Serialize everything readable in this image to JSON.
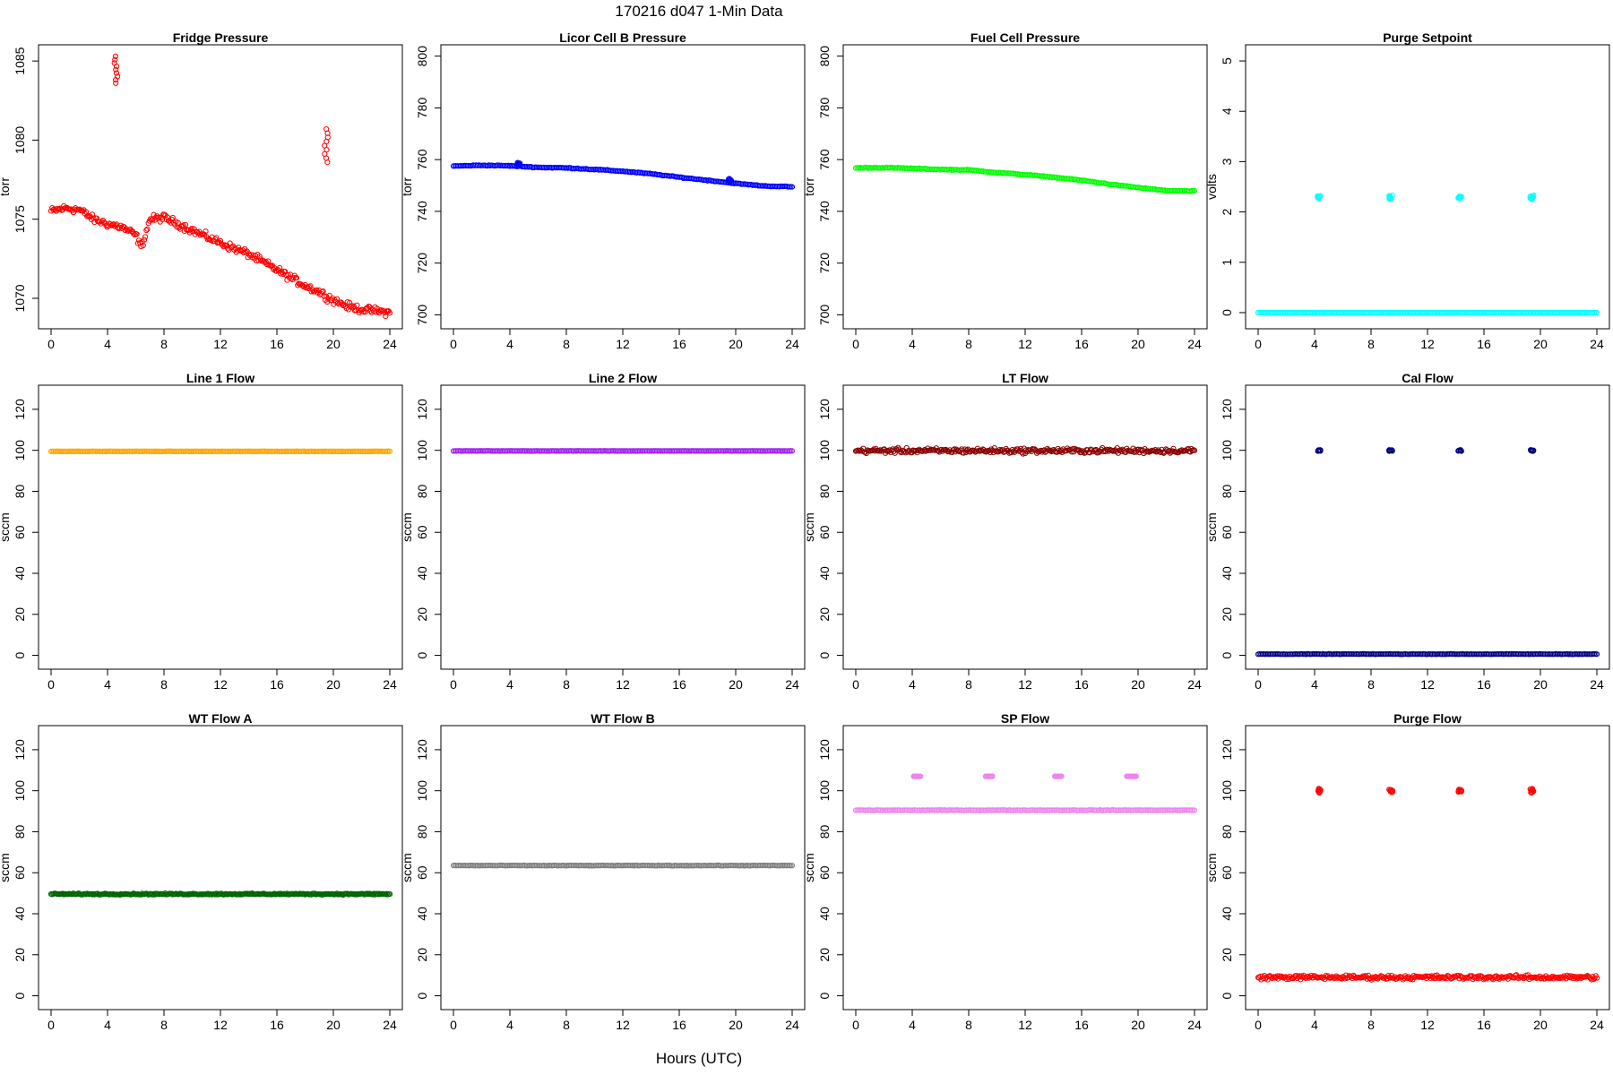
{
  "figure": {
    "title": "170216   d047   1-Min Data",
    "xlabel": "Hours (UTC)"
  },
  "chart_data": [
    {
      "type": "scatter",
      "title": "Fridge Pressure",
      "ylabel": "torr",
      "color": "#ff0000",
      "xlim": [
        0,
        24
      ],
      "ylim": [
        1068.3,
        1085.8
      ],
      "xticks": [
        0,
        4,
        8,
        12,
        16,
        20,
        24
      ],
      "yticks": [
        1070,
        1075,
        1080,
        1085
      ],
      "series": [
        {
          "name": "base",
          "kind": "band",
          "jitter": 0.35,
          "points": [
            [
              0,
              1075.5
            ],
            [
              1,
              1075.7
            ],
            [
              2,
              1075.6
            ],
            [
              3,
              1075.0
            ],
            [
              4,
              1074.7
            ],
            [
              5,
              1074.5
            ],
            [
              6,
              1074.0
            ],
            [
              6.4,
              1073.2
            ],
            [
              7,
              1075.0
            ],
            [
              8,
              1075.1
            ],
            [
              9,
              1074.7
            ],
            [
              10,
              1074.3
            ],
            [
              12,
              1073.5
            ],
            [
              14,
              1072.8
            ],
            [
              16,
              1071.8
            ],
            [
              18,
              1070.8
            ],
            [
              19,
              1070.4
            ],
            [
              20,
              1069.9
            ],
            [
              21,
              1069.5
            ],
            [
              22,
              1069.3
            ],
            [
              24,
              1069.1
            ]
          ]
        },
        {
          "name": "spike-1",
          "kind": "cluster",
          "x": 4.6,
          "y_min": 1083.6,
          "y_max": 1085.3
        },
        {
          "name": "spike-2",
          "kind": "cluster",
          "x": 19.5,
          "y_min": 1078.6,
          "y_max": 1080.7
        }
      ]
    },
    {
      "type": "scatter",
      "title": "Licor Cell B Pressure",
      "ylabel": "torr",
      "color": "#0000ff",
      "xlim": [
        0,
        24
      ],
      "ylim": [
        696,
        803
      ],
      "xticks": [
        0,
        4,
        8,
        12,
        16,
        20,
        24
      ],
      "yticks": [
        700,
        720,
        740,
        760,
        780,
        800
      ],
      "series": [
        {
          "name": "base",
          "kind": "line",
          "jitter": 0.25,
          "points": [
            [
              0,
              757.5
            ],
            [
              2,
              757.8
            ],
            [
              4,
              757.6
            ],
            [
              6,
              757.0
            ],
            [
              8,
              756.8
            ],
            [
              10,
              756.2
            ],
            [
              12,
              755.5
            ],
            [
              14,
              754.5
            ],
            [
              16,
              753.2
            ],
            [
              18,
              752.0
            ],
            [
              20,
              750.8
            ],
            [
              22,
              749.8
            ],
            [
              24,
              749.5
            ]
          ]
        },
        {
          "name": "bump-1",
          "kind": "cluster",
          "x": 4.6,
          "y_min": 757.8,
          "y_max": 758.8
        },
        {
          "name": "bump-2",
          "kind": "cluster",
          "x": 19.6,
          "y_min": 751.5,
          "y_max": 752.6
        }
      ]
    },
    {
      "type": "scatter",
      "title": "Fuel Cell Pressure",
      "ylabel": "torr",
      "color": "#00ff00",
      "xlim": [
        0,
        24
      ],
      "ylim": [
        696,
        803
      ],
      "xticks": [
        0,
        4,
        8,
        12,
        16,
        20,
        24
      ],
      "yticks": [
        700,
        720,
        740,
        760,
        780,
        800
      ],
      "series": [
        {
          "name": "base",
          "kind": "line",
          "jitter": 0.25,
          "points": [
            [
              0,
              756.8
            ],
            [
              2,
              756.9
            ],
            [
              4,
              756.6
            ],
            [
              6,
              756.2
            ],
            [
              8,
              756.0
            ],
            [
              10,
              755.0
            ],
            [
              12,
              754.2
            ],
            [
              14,
              753.2
            ],
            [
              16,
              752.0
            ],
            [
              18,
              750.5
            ],
            [
              20,
              749.2
            ],
            [
              22,
              748.0
            ],
            [
              24,
              747.8
            ]
          ]
        }
      ]
    },
    {
      "type": "scatter",
      "title": "Purge Setpoint",
      "ylabel": "volts",
      "color": "#00ffff",
      "xlim": [
        0,
        24
      ],
      "ylim": [
        -0.25,
        5.25
      ],
      "xticks": [
        0,
        4,
        8,
        12,
        16,
        20,
        24
      ],
      "yticks": [
        0,
        1,
        2,
        3,
        4,
        5
      ],
      "series": [
        {
          "name": "base",
          "kind": "line",
          "jitter": 0.0,
          "points": [
            [
              0,
              0
            ],
            [
              24,
              0
            ]
          ]
        },
        {
          "name": "pulse-1",
          "kind": "cluster",
          "x": 4.3,
          "y_min": 2.27,
          "y_max": 2.32
        },
        {
          "name": "pulse-2",
          "kind": "cluster",
          "x": 9.4,
          "y_min": 2.25,
          "y_max": 2.33
        },
        {
          "name": "pulse-3",
          "kind": "cluster",
          "x": 14.3,
          "y_min": 2.27,
          "y_max": 2.31
        },
        {
          "name": "pulse-4",
          "kind": "cluster",
          "x": 19.4,
          "y_min": 2.25,
          "y_max": 2.33
        }
      ]
    },
    {
      "type": "scatter",
      "title": "Line 1 Flow",
      "ylabel": "sccm",
      "color": "#ffa500",
      "xlim": [
        0,
        24
      ],
      "ylim": [
        -5,
        130
      ],
      "xticks": [
        0,
        4,
        8,
        12,
        16,
        20,
        24
      ],
      "yticks": [
        0,
        20,
        40,
        60,
        80,
        100,
        120
      ],
      "series": [
        {
          "name": "base",
          "kind": "line",
          "jitter": 0.1,
          "points": [
            [
              0,
              99.5
            ],
            [
              24,
              99.5
            ]
          ]
        }
      ]
    },
    {
      "type": "scatter",
      "title": "Line 2 Flow",
      "ylabel": "sccm",
      "color": "#a020f0",
      "xlim": [
        0,
        24
      ],
      "ylim": [
        -5,
        130
      ],
      "xticks": [
        0,
        4,
        8,
        12,
        16,
        20,
        24
      ],
      "yticks": [
        0,
        20,
        40,
        60,
        80,
        100,
        120
      ],
      "series": [
        {
          "name": "base",
          "kind": "line",
          "jitter": 0.1,
          "points": [
            [
              0,
              99.7
            ],
            [
              24,
              99.7
            ]
          ]
        }
      ]
    },
    {
      "type": "scatter",
      "title": "LT Flow",
      "ylabel": "sccm",
      "color": "#8b0000",
      "xlim": [
        0,
        24
      ],
      "ylim": [
        -5,
        130
      ],
      "xticks": [
        0,
        4,
        8,
        12,
        16,
        20,
        24
      ],
      "yticks": [
        0,
        20,
        40,
        60,
        80,
        100,
        120
      ],
      "series": [
        {
          "name": "base",
          "kind": "band",
          "jitter": 1.8,
          "points": [
            [
              0,
              99.8
            ],
            [
              24,
              99.8
            ]
          ]
        }
      ]
    },
    {
      "type": "scatter",
      "title": "Cal Flow",
      "ylabel": "sccm",
      "color": "#000080",
      "xlim": [
        0,
        24
      ],
      "ylim": [
        -5,
        130
      ],
      "xticks": [
        0,
        4,
        8,
        12,
        16,
        20,
        24
      ],
      "yticks": [
        0,
        20,
        40,
        60,
        80,
        100,
        120
      ],
      "series": [
        {
          "name": "base",
          "kind": "line",
          "jitter": 0.15,
          "points": [
            [
              0,
              0.6
            ],
            [
              24,
              0.6
            ]
          ]
        },
        {
          "name": "pulse-1",
          "kind": "cluster",
          "x": 4.3,
          "y_min": 99.6,
          "y_max": 100.2
        },
        {
          "name": "pulse-2",
          "kind": "cluster",
          "x": 9.4,
          "y_min": 99.6,
          "y_max": 100.2
        },
        {
          "name": "pulse-3",
          "kind": "cluster",
          "x": 14.3,
          "y_min": 99.6,
          "y_max": 100.2
        },
        {
          "name": "pulse-4",
          "kind": "cluster",
          "x": 19.4,
          "y_min": 99.6,
          "y_max": 100.2
        }
      ]
    },
    {
      "type": "scatter",
      "title": "WT Flow A",
      "ylabel": "sccm",
      "color": "#006400",
      "xlim": [
        0,
        24
      ],
      "ylim": [
        -5,
        130
      ],
      "xticks": [
        0,
        4,
        8,
        12,
        16,
        20,
        24
      ],
      "yticks": [
        0,
        20,
        40,
        60,
        80,
        100,
        120
      ],
      "series": [
        {
          "name": "base",
          "kind": "band",
          "jitter": 0.5,
          "points": [
            [
              0,
              49.6
            ],
            [
              24,
              49.6
            ]
          ]
        }
      ]
    },
    {
      "type": "scatter",
      "title": "WT Flow B",
      "ylabel": "sccm",
      "color": "#808080",
      "xlim": [
        0,
        24
      ],
      "ylim": [
        -5,
        130
      ],
      "xticks": [
        0,
        4,
        8,
        12,
        16,
        20,
        24
      ],
      "yticks": [
        0,
        20,
        40,
        60,
        80,
        100,
        120
      ],
      "series": [
        {
          "name": "base",
          "kind": "line",
          "jitter": 0.2,
          "points": [
            [
              0,
              63.5
            ],
            [
              24,
              63.5
            ]
          ]
        }
      ]
    },
    {
      "type": "scatter",
      "title": "SP Flow",
      "ylabel": "sccm",
      "color": "#ee82ee",
      "xlim": [
        0,
        24
      ],
      "ylim": [
        -5,
        130
      ],
      "xticks": [
        0,
        4,
        8,
        12,
        16,
        20,
        24
      ],
      "yticks": [
        0,
        20,
        40,
        60,
        80,
        100,
        120
      ],
      "series": [
        {
          "name": "base",
          "kind": "line",
          "jitter": 0.2,
          "points": [
            [
              0,
              90.5
            ],
            [
              24,
              90.5
            ]
          ]
        },
        {
          "name": "pulse-1",
          "kind": "hcluster",
          "x_min": 4.1,
          "x_max": 4.6,
          "y": 107
        },
        {
          "name": "pulse-2",
          "kind": "hcluster",
          "x_min": 9.2,
          "x_max": 9.7,
          "y": 107
        },
        {
          "name": "pulse-3",
          "kind": "hcluster",
          "x_min": 14.1,
          "x_max": 14.6,
          "y": 107
        },
        {
          "name": "pulse-4",
          "kind": "hcluster",
          "x_min": 19.2,
          "x_max": 19.9,
          "y": 107
        }
      ]
    },
    {
      "type": "scatter",
      "title": "Purge Flow",
      "ylabel": "sccm",
      "color": "#ff0000",
      "xlim": [
        0,
        24
      ],
      "ylim": [
        -5,
        130
      ],
      "xticks": [
        0,
        4,
        8,
        12,
        16,
        20,
        24
      ],
      "yticks": [
        0,
        20,
        40,
        60,
        80,
        100,
        120
      ],
      "series": [
        {
          "name": "base",
          "kind": "band",
          "jitter": 1.5,
          "points": [
            [
              0,
              9.0
            ],
            [
              24,
              9.0
            ]
          ]
        },
        {
          "name": "pulse-1",
          "kind": "cluster",
          "x": 4.3,
          "y_min": 99.0,
          "y_max": 101.0
        },
        {
          "name": "pulse-2",
          "kind": "cluster",
          "x": 9.4,
          "y_min": 99.2,
          "y_max": 100.6
        },
        {
          "name": "pulse-3",
          "kind": "cluster",
          "x": 14.3,
          "y_min": 99.4,
          "y_max": 100.6
        },
        {
          "name": "pulse-4",
          "kind": "cluster",
          "x": 19.4,
          "y_min": 99.0,
          "y_max": 101.0
        }
      ]
    }
  ]
}
